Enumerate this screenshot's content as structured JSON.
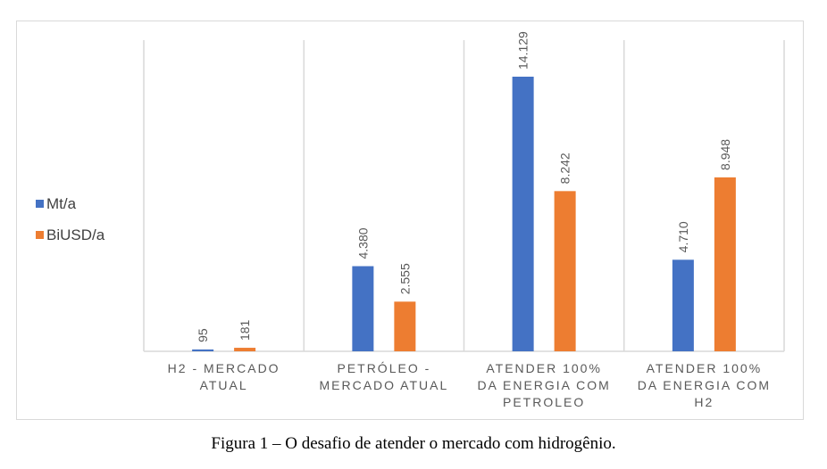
{
  "chart_data": {
    "type": "bar",
    "categories": [
      [
        "H2 - MERCADO",
        "ATUAL"
      ],
      [
        "PETRÓLEO -",
        "MERCADO ATUAL"
      ],
      [
        "ATENDER 100%",
        "DA ENERGIA COM",
        "PETROLEO"
      ],
      [
        "ATENDER 100%",
        "DA ENERGIA COM",
        "H2"
      ]
    ],
    "series": [
      {
        "name": "Mt/a",
        "color": "#4472c4",
        "values": [
          95,
          4380,
          14129,
          4710
        ],
        "labels": [
          "95",
          "4.380",
          "14.129",
          "4.710"
        ]
      },
      {
        "name": "BiUSD/a",
        "color": "#ed7d31",
        "values": [
          181,
          2555,
          8242,
          8948
        ],
        "labels": [
          "181",
          "2.555",
          "8.242",
          "8.948"
        ]
      }
    ],
    "ylim": [
      0,
      14129
    ],
    "legend_position": "left",
    "grid": "vertical-separators",
    "gridline_color": "#d9d9d9"
  },
  "caption": "Figura 1 – O desafio de atender o mercado com hidrogênio."
}
